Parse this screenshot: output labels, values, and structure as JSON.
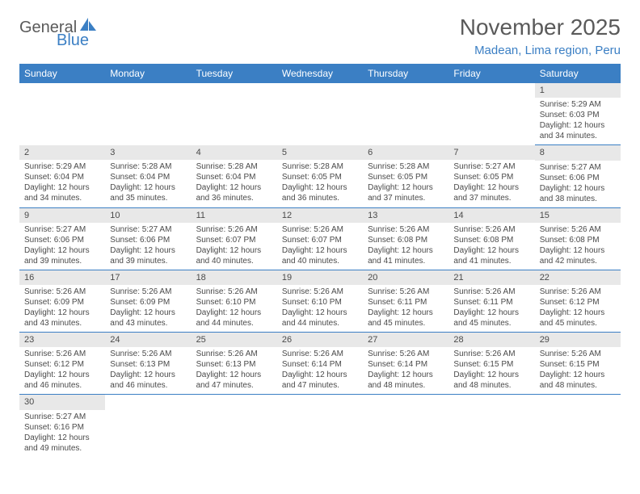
{
  "logo": {
    "text1": "General",
    "text2": "Blue"
  },
  "title": "November 2025",
  "location": "Madean, Lima region, Peru",
  "day_headers": [
    "Sunday",
    "Monday",
    "Tuesday",
    "Wednesday",
    "Thursday",
    "Friday",
    "Saturday"
  ],
  "colors": {
    "header_bg": "#3b7fc4",
    "header_text": "#ffffff",
    "accent": "#3b7fc4",
    "daynum_bg": "#e8e8e8",
    "body_text": "#4a4a4a"
  },
  "weeks": [
    [
      null,
      null,
      null,
      null,
      null,
      null,
      {
        "n": "1",
        "sunrise": "Sunrise: 5:29 AM",
        "sunset": "Sunset: 6:03 PM",
        "daylight": "Daylight: 12 hours and 34 minutes."
      }
    ],
    [
      {
        "n": "2",
        "sunrise": "Sunrise: 5:29 AM",
        "sunset": "Sunset: 6:04 PM",
        "daylight": "Daylight: 12 hours and 34 minutes."
      },
      {
        "n": "3",
        "sunrise": "Sunrise: 5:28 AM",
        "sunset": "Sunset: 6:04 PM",
        "daylight": "Daylight: 12 hours and 35 minutes."
      },
      {
        "n": "4",
        "sunrise": "Sunrise: 5:28 AM",
        "sunset": "Sunset: 6:04 PM",
        "daylight": "Daylight: 12 hours and 36 minutes."
      },
      {
        "n": "5",
        "sunrise": "Sunrise: 5:28 AM",
        "sunset": "Sunset: 6:05 PM",
        "daylight": "Daylight: 12 hours and 36 minutes."
      },
      {
        "n": "6",
        "sunrise": "Sunrise: 5:28 AM",
        "sunset": "Sunset: 6:05 PM",
        "daylight": "Daylight: 12 hours and 37 minutes."
      },
      {
        "n": "7",
        "sunrise": "Sunrise: 5:27 AM",
        "sunset": "Sunset: 6:05 PM",
        "daylight": "Daylight: 12 hours and 37 minutes."
      },
      {
        "n": "8",
        "sunrise": "Sunrise: 5:27 AM",
        "sunset": "Sunset: 6:06 PM",
        "daylight": "Daylight: 12 hours and 38 minutes."
      }
    ],
    [
      {
        "n": "9",
        "sunrise": "Sunrise: 5:27 AM",
        "sunset": "Sunset: 6:06 PM",
        "daylight": "Daylight: 12 hours and 39 minutes."
      },
      {
        "n": "10",
        "sunrise": "Sunrise: 5:27 AM",
        "sunset": "Sunset: 6:06 PM",
        "daylight": "Daylight: 12 hours and 39 minutes."
      },
      {
        "n": "11",
        "sunrise": "Sunrise: 5:26 AM",
        "sunset": "Sunset: 6:07 PM",
        "daylight": "Daylight: 12 hours and 40 minutes."
      },
      {
        "n": "12",
        "sunrise": "Sunrise: 5:26 AM",
        "sunset": "Sunset: 6:07 PM",
        "daylight": "Daylight: 12 hours and 40 minutes."
      },
      {
        "n": "13",
        "sunrise": "Sunrise: 5:26 AM",
        "sunset": "Sunset: 6:08 PM",
        "daylight": "Daylight: 12 hours and 41 minutes."
      },
      {
        "n": "14",
        "sunrise": "Sunrise: 5:26 AM",
        "sunset": "Sunset: 6:08 PM",
        "daylight": "Daylight: 12 hours and 41 minutes."
      },
      {
        "n": "15",
        "sunrise": "Sunrise: 5:26 AM",
        "sunset": "Sunset: 6:08 PM",
        "daylight": "Daylight: 12 hours and 42 minutes."
      }
    ],
    [
      {
        "n": "16",
        "sunrise": "Sunrise: 5:26 AM",
        "sunset": "Sunset: 6:09 PM",
        "daylight": "Daylight: 12 hours and 43 minutes."
      },
      {
        "n": "17",
        "sunrise": "Sunrise: 5:26 AM",
        "sunset": "Sunset: 6:09 PM",
        "daylight": "Daylight: 12 hours and 43 minutes."
      },
      {
        "n": "18",
        "sunrise": "Sunrise: 5:26 AM",
        "sunset": "Sunset: 6:10 PM",
        "daylight": "Daylight: 12 hours and 44 minutes."
      },
      {
        "n": "19",
        "sunrise": "Sunrise: 5:26 AM",
        "sunset": "Sunset: 6:10 PM",
        "daylight": "Daylight: 12 hours and 44 minutes."
      },
      {
        "n": "20",
        "sunrise": "Sunrise: 5:26 AM",
        "sunset": "Sunset: 6:11 PM",
        "daylight": "Daylight: 12 hours and 45 minutes."
      },
      {
        "n": "21",
        "sunrise": "Sunrise: 5:26 AM",
        "sunset": "Sunset: 6:11 PM",
        "daylight": "Daylight: 12 hours and 45 minutes."
      },
      {
        "n": "22",
        "sunrise": "Sunrise: 5:26 AM",
        "sunset": "Sunset: 6:12 PM",
        "daylight": "Daylight: 12 hours and 45 minutes."
      }
    ],
    [
      {
        "n": "23",
        "sunrise": "Sunrise: 5:26 AM",
        "sunset": "Sunset: 6:12 PM",
        "daylight": "Daylight: 12 hours and 46 minutes."
      },
      {
        "n": "24",
        "sunrise": "Sunrise: 5:26 AM",
        "sunset": "Sunset: 6:13 PM",
        "daylight": "Daylight: 12 hours and 46 minutes."
      },
      {
        "n": "25",
        "sunrise": "Sunrise: 5:26 AM",
        "sunset": "Sunset: 6:13 PM",
        "daylight": "Daylight: 12 hours and 47 minutes."
      },
      {
        "n": "26",
        "sunrise": "Sunrise: 5:26 AM",
        "sunset": "Sunset: 6:14 PM",
        "daylight": "Daylight: 12 hours and 47 minutes."
      },
      {
        "n": "27",
        "sunrise": "Sunrise: 5:26 AM",
        "sunset": "Sunset: 6:14 PM",
        "daylight": "Daylight: 12 hours and 48 minutes."
      },
      {
        "n": "28",
        "sunrise": "Sunrise: 5:26 AM",
        "sunset": "Sunset: 6:15 PM",
        "daylight": "Daylight: 12 hours and 48 minutes."
      },
      {
        "n": "29",
        "sunrise": "Sunrise: 5:26 AM",
        "sunset": "Sunset: 6:15 PM",
        "daylight": "Daylight: 12 hours and 48 minutes."
      }
    ],
    [
      {
        "n": "30",
        "sunrise": "Sunrise: 5:27 AM",
        "sunset": "Sunset: 6:16 PM",
        "daylight": "Daylight: 12 hours and 49 minutes."
      },
      null,
      null,
      null,
      null,
      null,
      null
    ]
  ]
}
